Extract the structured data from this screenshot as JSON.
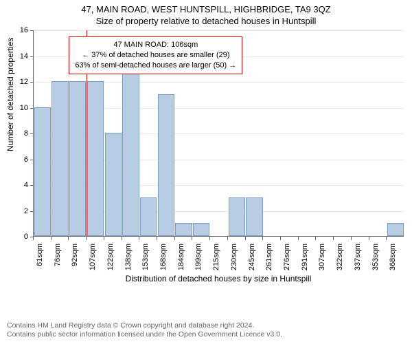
{
  "title_line1": "47, MAIN ROAD, WEST HUNTSPILL, HIGHBRIDGE, TA9 3QZ",
  "title_line2": "Size of property relative to detached houses in Huntspill",
  "y_axis_label": "Number of detached properties",
  "x_axis_label": "Distribution of detached houses by size in Huntspill",
  "footer_line1": "Contains HM Land Registry data © Crown copyright and database right 2024.",
  "footer_line2": "Contains public sector information licensed under the Open Government Licence v3.0.",
  "chart": {
    "type": "histogram",
    "y_max": 16,
    "y_tick_step": 2,
    "y_ticks": [
      0,
      2,
      4,
      6,
      8,
      10,
      12,
      14,
      16
    ],
    "bar_fill": "#b8cce4",
    "bar_stroke": "#7a9cc6",
    "background": "#ffffff",
    "axis_color": "#666666",
    "grid_color": "#666666",
    "grid_opacity": 0.15,
    "x_labels": [
      "61sqm",
      "76sqm",
      "92sqm",
      "107sqm",
      "122sqm",
      "138sqm",
      "153sqm",
      "168sqm",
      "184sqm",
      "199sqm",
      "215sqm",
      "230sqm",
      "245sqm",
      "261sqm",
      "276sqm",
      "291sqm",
      "307sqm",
      "322sqm",
      "337sqm",
      "353sqm",
      "368sqm"
    ],
    "values": [
      10,
      12,
      12,
      12,
      8,
      13,
      3,
      11,
      1,
      1,
      0,
      3,
      3,
      0,
      0,
      0,
      0,
      0,
      0,
      0,
      1
    ],
    "bar_width_ratio": 0.95
  },
  "marker": {
    "bin_index_after": 3,
    "fraction_into_gap": 0.0,
    "color": "#cc0000"
  },
  "annotation": {
    "line1": "47 MAIN ROAD: 106sqm",
    "line2": "← 37% of detached houses are smaller (29)",
    "line3": "63% of semi-detached houses are larger (50) →",
    "border_color": "#cc0000",
    "left_bin": 2,
    "top_value": 15.5
  },
  "fonts": {
    "title": 13,
    "axis_label": 12,
    "tick": 11,
    "annotation": 11,
    "footer": 10.5
  }
}
